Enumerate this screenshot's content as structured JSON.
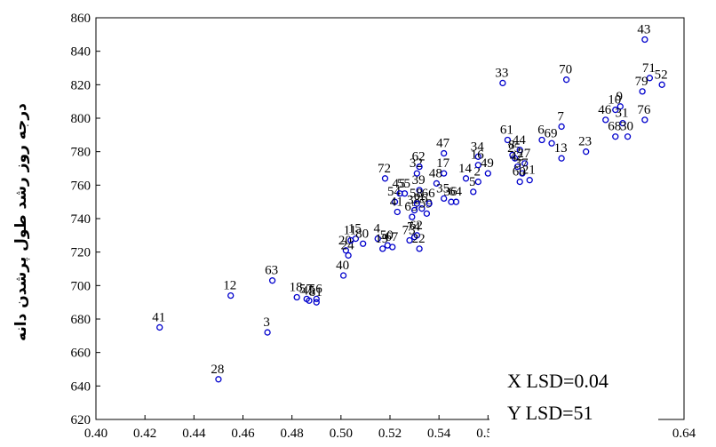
{
  "chart_data": {
    "type": "scatter",
    "title": "",
    "xlabel": "",
    "ylabel": "درجه روز رشد طول پرشدن دانه",
    "xlim": [
      0.4,
      0.64
    ],
    "ylim": [
      620,
      860
    ],
    "x_ticks": [
      "0.40",
      "0.42",
      "0.44",
      "0.46",
      "0.48",
      "0.50",
      "0.52",
      "0.54",
      "0.56",
      "0.58",
      "0.60",
      "0.62",
      "0.64"
    ],
    "y_ticks": [
      "620",
      "640",
      "660",
      "680",
      "700",
      "720",
      "740",
      "760",
      "780",
      "800",
      "820",
      "840",
      "860"
    ],
    "marker_color": "#0000cc",
    "grid": false,
    "annotations": [
      "X LSD=0.04",
      "Y LSD=51"
    ],
    "points": [
      {
        "label": "41",
        "x": 0.426,
        "y": 675
      },
      {
        "label": "28",
        "x": 0.45,
        "y": 644
      },
      {
        "label": "12",
        "x": 0.455,
        "y": 694
      },
      {
        "label": "3",
        "x": 0.47,
        "y": 672
      },
      {
        "label": "63",
        "x": 0.472,
        "y": 703
      },
      {
        "label": "18",
        "x": 0.482,
        "y": 693
      },
      {
        "label": "57",
        "x": 0.486,
        "y": 692
      },
      {
        "label": "45",
        "x": 0.487,
        "y": 691
      },
      {
        "label": "56",
        "x": 0.49,
        "y": 692
      },
      {
        "label": "81",
        "x": 0.49,
        "y": 690
      },
      {
        "label": "40",
        "x": 0.501,
        "y": 706
      },
      {
        "label": "20",
        "x": 0.502,
        "y": 721
      },
      {
        "label": "24",
        "x": 0.503,
        "y": 718
      },
      {
        "label": "11",
        "x": 0.504,
        "y": 727
      },
      {
        "label": "15",
        "x": 0.506,
        "y": 728
      },
      {
        "label": "80",
        "x": 0.509,
        "y": 725
      },
      {
        "label": "4",
        "x": 0.515,
        "y": 728
      },
      {
        "label": "19",
        "x": 0.517,
        "y": 722
      },
      {
        "label": "50",
        "x": 0.519,
        "y": 724
      },
      {
        "label": "67",
        "x": 0.521,
        "y": 723
      },
      {
        "label": "72",
        "x": 0.518,
        "y": 764
      },
      {
        "label": "54",
        "x": 0.522,
        "y": 750
      },
      {
        "label": "41",
        "x": 0.523,
        "y": 744
      },
      {
        "label": "45",
        "x": 0.524,
        "y": 755
      },
      {
        "label": "55",
        "x": 0.526,
        "y": 755
      },
      {
        "label": "73",
        "x": 0.528,
        "y": 727
      },
      {
        "label": "74",
        "x": 0.53,
        "y": 729
      },
      {
        "label": "62",
        "x": 0.531,
        "y": 730
      },
      {
        "label": "22",
        "x": 0.532,
        "y": 722
      },
      {
        "label": "65",
        "x": 0.529,
        "y": 741
      },
      {
        "label": "38",
        "x": 0.53,
        "y": 745
      },
      {
        "label": "26",
        "x": 0.533,
        "y": 746
      },
      {
        "label": "59",
        "x": 0.535,
        "y": 743
      },
      {
        "label": "39",
        "x": 0.532,
        "y": 757
      },
      {
        "label": "58",
        "x": 0.531,
        "y": 749
      },
      {
        "label": "66",
        "x": 0.536,
        "y": 749
      },
      {
        "label": "32",
        "x": 0.531,
        "y": 767
      },
      {
        "label": "62",
        "x": 0.532,
        "y": 771
      },
      {
        "label": "48",
        "x": 0.539,
        "y": 761
      },
      {
        "label": "47",
        "x": 0.542,
        "y": 779
      },
      {
        "label": "17",
        "x": 0.542,
        "y": 767
      },
      {
        "label": "35",
        "x": 0.542,
        "y": 752
      },
      {
        "label": "36",
        "x": 0.545,
        "y": 750
      },
      {
        "label": "64",
        "x": 0.547,
        "y": 750
      },
      {
        "label": "14",
        "x": 0.551,
        "y": 764
      },
      {
        "label": "5",
        "x": 0.554,
        "y": 756
      },
      {
        "label": "2",
        "x": 0.556,
        "y": 762
      },
      {
        "label": "34",
        "x": 0.556,
        "y": 777
      },
      {
        "label": "16",
        "x": 0.556,
        "y": 772
      },
      {
        "label": "49",
        "x": 0.56,
        "y": 767
      },
      {
        "label": "33",
        "x": 0.566,
        "y": 821
      },
      {
        "label": "61",
        "x": 0.568,
        "y": 787
      },
      {
        "label": "8",
        "x": 0.57,
        "y": 778
      },
      {
        "label": "25",
        "x": 0.571,
        "y": 776
      },
      {
        "label": "44",
        "x": 0.573,
        "y": 781
      },
      {
        "label": "27",
        "x": 0.575,
        "y": 773
      },
      {
        "label": "42",
        "x": 0.572,
        "y": 771
      },
      {
        "label": "37",
        "x": 0.574,
        "y": 767
      },
      {
        "label": "21",
        "x": 0.577,
        "y": 763
      },
      {
        "label": "60",
        "x": 0.573,
        "y": 762
      },
      {
        "label": "6",
        "x": 0.582,
        "y": 787
      },
      {
        "label": "69",
        "x": 0.586,
        "y": 785
      },
      {
        "label": "7",
        "x": 0.59,
        "y": 795
      },
      {
        "label": "13",
        "x": 0.59,
        "y": 776
      },
      {
        "label": "70",
        "x": 0.592,
        "y": 823
      },
      {
        "label": "23",
        "x": 0.6,
        "y": 780
      },
      {
        "label": "46",
        "x": 0.608,
        "y": 799
      },
      {
        "label": "10",
        "x": 0.612,
        "y": 805
      },
      {
        "label": "9",
        "x": 0.614,
        "y": 807
      },
      {
        "label": "68",
        "x": 0.612,
        "y": 789
      },
      {
        "label": "31",
        "x": 0.615,
        "y": 797
      },
      {
        "label": "30",
        "x": 0.617,
        "y": 789
      },
      {
        "label": "43",
        "x": 0.624,
        "y": 847
      },
      {
        "label": "71",
        "x": 0.626,
        "y": 824
      },
      {
        "label": "79",
        "x": 0.623,
        "y": 816
      },
      {
        "label": "76",
        "x": 0.624,
        "y": 799
      },
      {
        "label": "52",
        "x": 0.631,
        "y": 820
      }
    ]
  }
}
